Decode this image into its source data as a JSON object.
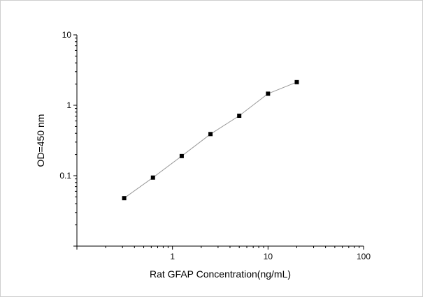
{
  "chart_data": {
    "type": "line",
    "title": "",
    "xlabel": "Rat GFAP Concentration(ng/mL)",
    "ylabel": "OD=450 nm",
    "x_scale": "log",
    "y_scale": "log",
    "xlim": [
      0.1,
      100
    ],
    "ylim": [
      0.01,
      10
    ],
    "x_ticks": [
      1,
      10,
      100
    ],
    "x_tick_labels": [
      "1",
      "10",
      "100"
    ],
    "y_ticks": [
      0.1,
      1,
      10
    ],
    "y_tick_labels": [
      "0.1",
      "1",
      "10"
    ],
    "grid": false,
    "legend": "none",
    "series": [
      {
        "x": [
          0.3125,
          0.625,
          1.25,
          2.5,
          5,
          10,
          20
        ],
        "y": [
          0.048,
          0.094,
          0.19,
          0.39,
          0.71,
          1.46,
          2.13
        ],
        "line_color": "#9a9a9a",
        "marker_color": "#000000",
        "marker": "square"
      }
    ]
  }
}
